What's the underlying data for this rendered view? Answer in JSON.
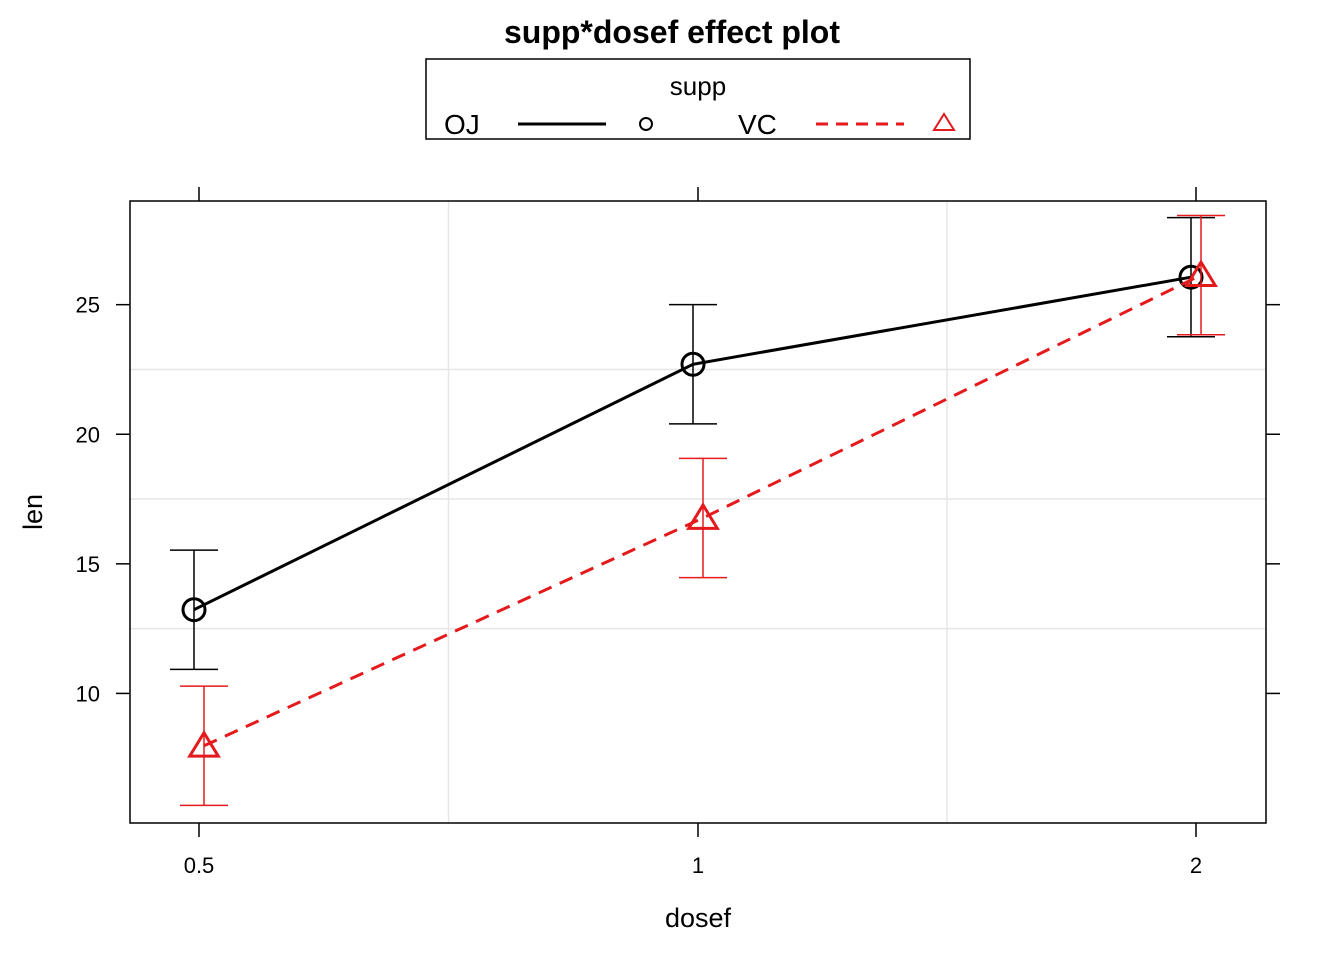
{
  "chart_data": {
    "type": "line",
    "title": "supp*dosef effect plot",
    "xlabel": "dosef",
    "ylabel": "len",
    "categories": [
      "0.5",
      "1",
      "2"
    ],
    "yticks": [
      10,
      15,
      20,
      25
    ],
    "ylim": [
      5,
      29
    ],
    "grid": true,
    "legend": {
      "title": "supp",
      "placement": "top"
    },
    "series": [
      {
        "name": "OJ",
        "color": "#000000",
        "line_style": "solid",
        "marker": "circle",
        "values": [
          13.23,
          22.7,
          26.06
        ],
        "lower": [
          10.93,
          20.4,
          23.76
        ],
        "upper": [
          15.53,
          25.0,
          28.36
        ]
      },
      {
        "name": "VC",
        "color": "#e41a1c",
        "line_style": "dashed",
        "marker": "triangle",
        "values": [
          7.98,
          16.77,
          26.14
        ],
        "lower": [
          5.68,
          14.47,
          23.84
        ],
        "upper": [
          10.28,
          19.07,
          28.44
        ]
      }
    ]
  }
}
